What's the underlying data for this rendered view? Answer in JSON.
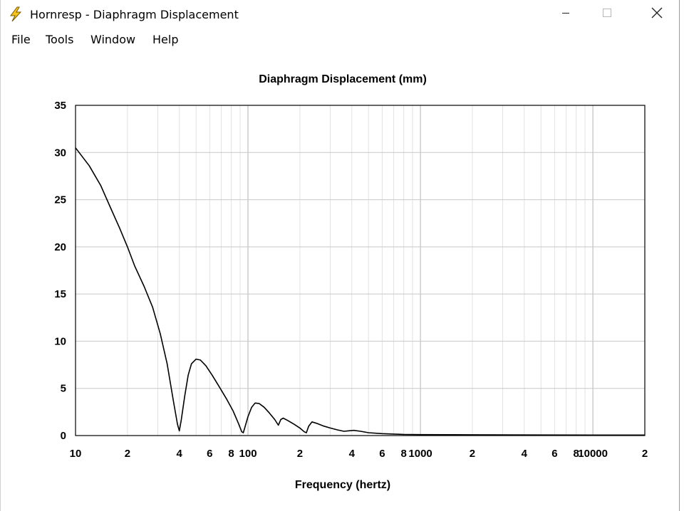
{
  "window": {
    "title": "Hornresp - Diaphragm Displacement",
    "icon": "lightning-bolt-icon",
    "controls": [
      "minimize-icon",
      "maximize-icon",
      "close-icon"
    ]
  },
  "menu": {
    "items": [
      "File",
      "Tools",
      "Window",
      "Help"
    ]
  },
  "colors": {
    "plot_background": "#ffffff",
    "grid_major": "#c8c8c8",
    "grid_minor": "#e2e2e2",
    "curve": "#000000",
    "icon_yellow": "#f6c21c"
  },
  "chart_data": {
    "type": "line",
    "title": "Diaphragm Displacement (mm)",
    "xlabel": "Frequency (hertz)",
    "ylabel": "",
    "xscale": "log",
    "xlim": [
      10,
      20000
    ],
    "ylim": [
      0,
      35
    ],
    "grid": true,
    "yticks": [
      0,
      5,
      10,
      15,
      20,
      25,
      30,
      35
    ],
    "xtick_labels": [
      {
        "value": 10,
        "label": "10"
      },
      {
        "value": 20,
        "label": "2"
      },
      {
        "value": 40,
        "label": "4"
      },
      {
        "value": 60,
        "label": "6"
      },
      {
        "value": 80,
        "label": "8"
      },
      {
        "value": 100,
        "label": "100"
      },
      {
        "value": 200,
        "label": "2"
      },
      {
        "value": 400,
        "label": "4"
      },
      {
        "value": 600,
        "label": "6"
      },
      {
        "value": 800,
        "label": "8"
      },
      {
        "value": 1000,
        "label": "1000"
      },
      {
        "value": 2000,
        "label": "2"
      },
      {
        "value": 4000,
        "label": "4"
      },
      {
        "value": 6000,
        "label": "6"
      },
      {
        "value": 8000,
        "label": "8"
      },
      {
        "value": 10000,
        "label": "10000"
      },
      {
        "value": 20000,
        "label": "2"
      }
    ],
    "series": [
      {
        "points": [
          [
            10,
            30.5
          ],
          [
            12,
            28.6
          ],
          [
            14,
            26.5
          ],
          [
            16,
            24.1
          ],
          [
            18,
            22.0
          ],
          [
            20,
            20.0
          ],
          [
            22,
            18.0
          ],
          [
            25,
            15.8
          ],
          [
            28,
            13.6
          ],
          [
            31,
            10.8
          ],
          [
            34,
            7.6
          ],
          [
            37,
            3.6
          ],
          [
            39,
            1.2
          ],
          [
            40,
            0.5
          ],
          [
            41,
            1.6
          ],
          [
            43,
            4.2
          ],
          [
            45,
            6.4
          ],
          [
            47,
            7.6
          ],
          [
            50,
            8.1
          ],
          [
            53,
            8.0
          ],
          [
            57,
            7.4
          ],
          [
            62,
            6.4
          ],
          [
            68,
            5.2
          ],
          [
            75,
            3.9
          ],
          [
            82,
            2.6
          ],
          [
            88,
            1.3
          ],
          [
            92,
            0.4
          ],
          [
            94,
            0.3
          ],
          [
            96,
            0.9
          ],
          [
            100,
            2.0
          ],
          [
            105,
            3.0
          ],
          [
            110,
            3.45
          ],
          [
            116,
            3.4
          ],
          [
            124,
            3.0
          ],
          [
            133,
            2.4
          ],
          [
            143,
            1.7
          ],
          [
            150,
            1.1
          ],
          [
            155,
            1.7
          ],
          [
            160,
            1.85
          ],
          [
            170,
            1.6
          ],
          [
            185,
            1.2
          ],
          [
            200,
            0.8
          ],
          [
            212,
            0.4
          ],
          [
            218,
            0.3
          ],
          [
            225,
            1.0
          ],
          [
            235,
            1.45
          ],
          [
            250,
            1.3
          ],
          [
            275,
            1.0
          ],
          [
            300,
            0.8
          ],
          [
            330,
            0.6
          ],
          [
            360,
            0.45
          ],
          [
            380,
            0.5
          ],
          [
            410,
            0.55
          ],
          [
            450,
            0.45
          ],
          [
            500,
            0.3
          ],
          [
            600,
            0.2
          ],
          [
            800,
            0.12
          ],
          [
            1000,
            0.1
          ],
          [
            2000,
            0.08
          ],
          [
            5000,
            0.06
          ],
          [
            10000,
            0.05
          ],
          [
            20000,
            0.05
          ]
        ]
      }
    ]
  }
}
